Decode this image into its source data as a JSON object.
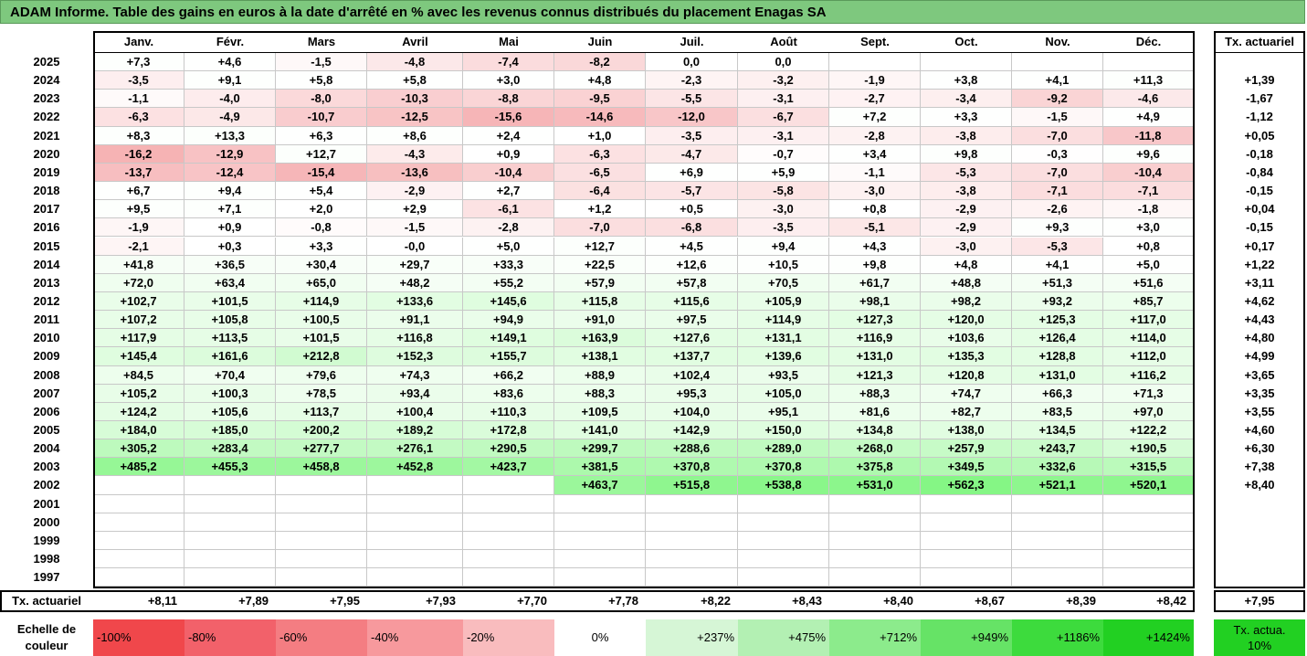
{
  "title": "ADAM Informe. Table des gains en euros à la date d'arrêté en % avec les revenus connus distribués du placement Enagas SA",
  "chart_data": {
    "type": "table",
    "columns": [
      "Janv.",
      "Févr.",
      "Mars",
      "Avril",
      "Mai",
      "Juin",
      "Juil.",
      "Août",
      "Sept.",
      "Oct.",
      "Nov.",
      "Déc."
    ],
    "rate_header": "Tx. actuariel",
    "rows": [
      {
        "year": "2025",
        "values": [
          "+7,3",
          "+4,6",
          "-1,5",
          "-4,8",
          "-7,4",
          "-8,2",
          "0,0",
          "0,0",
          "",
          "",
          "",
          ""
        ],
        "rate": ""
      },
      {
        "year": "2024",
        "values": [
          "-3,5",
          "+9,1",
          "+5,8",
          "+5,8",
          "+3,0",
          "+4,8",
          "-2,3",
          "-3,2",
          "-1,9",
          "+3,8",
          "+4,1",
          "+11,3"
        ],
        "rate": "+1,39"
      },
      {
        "year": "2023",
        "values": [
          "-1,1",
          "-4,0",
          "-8,0",
          "-10,3",
          "-8,8",
          "-9,5",
          "-5,5",
          "-3,1",
          "-2,7",
          "-3,4",
          "-9,2",
          "-4,6"
        ],
        "rate": "-1,67"
      },
      {
        "year": "2022",
        "values": [
          "-6,3",
          "-4,9",
          "-10,7",
          "-12,5",
          "-15,6",
          "-14,6",
          "-12,0",
          "-6,7",
          "+7,2",
          "+3,3",
          "-1,5",
          "+4,9"
        ],
        "rate": "-1,12"
      },
      {
        "year": "2021",
        "values": [
          "+8,3",
          "+13,3",
          "+6,3",
          "+8,6",
          "+2,4",
          "+1,0",
          "-3,5",
          "-3,1",
          "-2,8",
          "-3,8",
          "-7,0",
          "-11,8"
        ],
        "rate": "+0,05"
      },
      {
        "year": "2020",
        "values": [
          "-16,2",
          "-12,9",
          "+12,7",
          "-4,3",
          "+0,9",
          "-6,3",
          "-4,7",
          "-0,7",
          "+3,4",
          "+9,8",
          "-0,3",
          "+9,6"
        ],
        "rate": "-0,18"
      },
      {
        "year": "2019",
        "values": [
          "-13,7",
          "-12,4",
          "-15,4",
          "-13,6",
          "-10,4",
          "-6,5",
          "+6,9",
          "+5,9",
          "-1,1",
          "-5,3",
          "-7,0",
          "-10,4"
        ],
        "rate": "-0,84"
      },
      {
        "year": "2018",
        "values": [
          "+6,7",
          "+9,4",
          "+5,4",
          "-2,9",
          "+2,7",
          "-6,4",
          "-5,7",
          "-5,8",
          "-3,0",
          "-3,8",
          "-7,1",
          "-7,1"
        ],
        "rate": "-0,15"
      },
      {
        "year": "2017",
        "values": [
          "+9,5",
          "+7,1",
          "+2,0",
          "+2,9",
          "-6,1",
          "+1,2",
          "+0,5",
          "-3,0",
          "+0,8",
          "-2,9",
          "-2,6",
          "-1,8"
        ],
        "rate": "+0,04"
      },
      {
        "year": "2016",
        "values": [
          "-1,9",
          "+0,9",
          "-0,8",
          "-1,5",
          "-2,8",
          "-7,0",
          "-6,8",
          "-3,5",
          "-5,1",
          "-2,9",
          "+9,3",
          "+3,0"
        ],
        "rate": "-0,15"
      },
      {
        "year": "2015",
        "values": [
          "-2,1",
          "+0,3",
          "+3,3",
          "-0,0",
          "+5,0",
          "+12,7",
          "+4,5",
          "+9,4",
          "+4,3",
          "-3,0",
          "-5,3",
          "+0,8"
        ],
        "rate": "+0,17"
      },
      {
        "year": "2014",
        "values": [
          "+41,8",
          "+36,5",
          "+30,4",
          "+29,7",
          "+33,3",
          "+22,5",
          "+12,6",
          "+10,5",
          "+9,8",
          "+4,8",
          "+4,1",
          "+5,0"
        ],
        "rate": "+1,22"
      },
      {
        "year": "2013",
        "values": [
          "+72,0",
          "+63,4",
          "+65,0",
          "+48,2",
          "+55,2",
          "+57,9",
          "+57,8",
          "+70,5",
          "+61,7",
          "+48,8",
          "+51,3",
          "+51,6"
        ],
        "rate": "+3,11"
      },
      {
        "year": "2012",
        "values": [
          "+102,7",
          "+101,5",
          "+114,9",
          "+133,6",
          "+145,6",
          "+115,8",
          "+115,6",
          "+105,9",
          "+98,1",
          "+98,2",
          "+93,2",
          "+85,7"
        ],
        "rate": "+4,62"
      },
      {
        "year": "2011",
        "values": [
          "+107,2",
          "+105,8",
          "+100,5",
          "+91,1",
          "+94,9",
          "+91,0",
          "+97,5",
          "+114,9",
          "+127,3",
          "+120,0",
          "+125,3",
          "+117,0"
        ],
        "rate": "+4,43"
      },
      {
        "year": "2010",
        "values": [
          "+117,9",
          "+113,5",
          "+101,5",
          "+116,8",
          "+149,1",
          "+163,9",
          "+127,6",
          "+131,1",
          "+116,9",
          "+103,6",
          "+126,4",
          "+114,0"
        ],
        "rate": "+4,80"
      },
      {
        "year": "2009",
        "values": [
          "+145,4",
          "+161,6",
          "+212,8",
          "+152,3",
          "+155,7",
          "+138,1",
          "+137,7",
          "+139,6",
          "+131,0",
          "+135,3",
          "+128,8",
          "+112,0"
        ],
        "rate": "+4,99"
      },
      {
        "year": "2008",
        "values": [
          "+84,5",
          "+70,4",
          "+79,6",
          "+74,3",
          "+66,2",
          "+88,9",
          "+102,4",
          "+93,5",
          "+121,3",
          "+120,8",
          "+131,0",
          "+116,2"
        ],
        "rate": "+3,65"
      },
      {
        "year": "2007",
        "values": [
          "+105,2",
          "+100,3",
          "+78,5",
          "+93,4",
          "+83,6",
          "+88,3",
          "+95,3",
          "+105,0",
          "+88,3",
          "+74,7",
          "+66,3",
          "+71,3"
        ],
        "rate": "+3,35"
      },
      {
        "year": "2006",
        "values": [
          "+124,2",
          "+105,6",
          "+113,7",
          "+100,4",
          "+110,3",
          "+109,5",
          "+104,0",
          "+95,1",
          "+81,6",
          "+82,7",
          "+83,5",
          "+97,0"
        ],
        "rate": "+3,55"
      },
      {
        "year": "2005",
        "values": [
          "+184,0",
          "+185,0",
          "+200,2",
          "+189,2",
          "+172,8",
          "+141,0",
          "+142,9",
          "+150,0",
          "+134,8",
          "+138,0",
          "+134,5",
          "+122,2"
        ],
        "rate": "+4,60"
      },
      {
        "year": "2004",
        "values": [
          "+305,2",
          "+283,4",
          "+277,7",
          "+276,1",
          "+290,5",
          "+299,7",
          "+288,6",
          "+289,0",
          "+268,0",
          "+257,9",
          "+243,7",
          "+190,5"
        ],
        "rate": "+6,30"
      },
      {
        "year": "2003",
        "values": [
          "+485,2",
          "+455,3",
          "+458,8",
          "+452,8",
          "+423,7",
          "+381,5",
          "+370,8",
          "+370,8",
          "+375,8",
          "+349,5",
          "+332,6",
          "+315,5"
        ],
        "rate": "+7,38"
      },
      {
        "year": "2002",
        "values": [
          "",
          "",
          "",
          "",
          "",
          "+463,7",
          "+515,8",
          "+538,8",
          "+531,0",
          "+562,3",
          "+521,1",
          "+520,1"
        ],
        "rate": "+8,40"
      },
      {
        "year": "2001",
        "values": [
          "",
          "",
          "",
          "",
          "",
          "",
          "",
          "",
          "",
          "",
          "",
          ""
        ],
        "rate": ""
      },
      {
        "year": "2000",
        "values": [
          "",
          "",
          "",
          "",
          "",
          "",
          "",
          "",
          "",
          "",
          "",
          ""
        ],
        "rate": ""
      },
      {
        "year": "1999",
        "values": [
          "",
          "",
          "",
          "",
          "",
          "",
          "",
          "",
          "",
          "",
          "",
          ""
        ],
        "rate": ""
      },
      {
        "year": "1998",
        "values": [
          "",
          "",
          "",
          "",
          "",
          "",
          "",
          "",
          "",
          "",
          "",
          ""
        ],
        "rate": ""
      },
      {
        "year": "1997",
        "values": [
          "",
          "",
          "",
          "",
          "",
          "",
          "",
          "",
          "",
          "",
          "",
          ""
        ],
        "rate": ""
      }
    ],
    "footer": {
      "label": "Tx. actuariel",
      "values": [
        "+8,11",
        "+7,89",
        "+7,95",
        "+7,93",
        "+7,70",
        "+7,78",
        "+8,22",
        "+8,43",
        "+8,40",
        "+8,67",
        "+8,39",
        "+8,42"
      ],
      "rate": "+7,95"
    },
    "scale": {
      "label": "Echelle de couleur",
      "items": [
        {
          "text": "-100%",
          "color": "#f0474b"
        },
        {
          "text": "-80%",
          "color": "#f2616a"
        },
        {
          "text": "-60%",
          "color": "#f47d82"
        },
        {
          "text": "-40%",
          "color": "#f7999d"
        },
        {
          "text": "-20%",
          "color": "#f9bcbe"
        },
        {
          "text": "0%",
          "color": "#ffffff"
        },
        {
          "text": "+237%",
          "color": "#d6f6d6"
        },
        {
          "text": "+475%",
          "color": "#b3f0b3"
        },
        {
          "text": "+712%",
          "color": "#8ceb8c"
        },
        {
          "text": "+949%",
          "color": "#66e366"
        },
        {
          "text": "+1186%",
          "color": "#3ddb3d"
        },
        {
          "text": "+1424%",
          "color": "#22d022"
        }
      ],
      "rate_text": "Tx. actua. 10%",
      "rate_color": "#22d022"
    }
  }
}
